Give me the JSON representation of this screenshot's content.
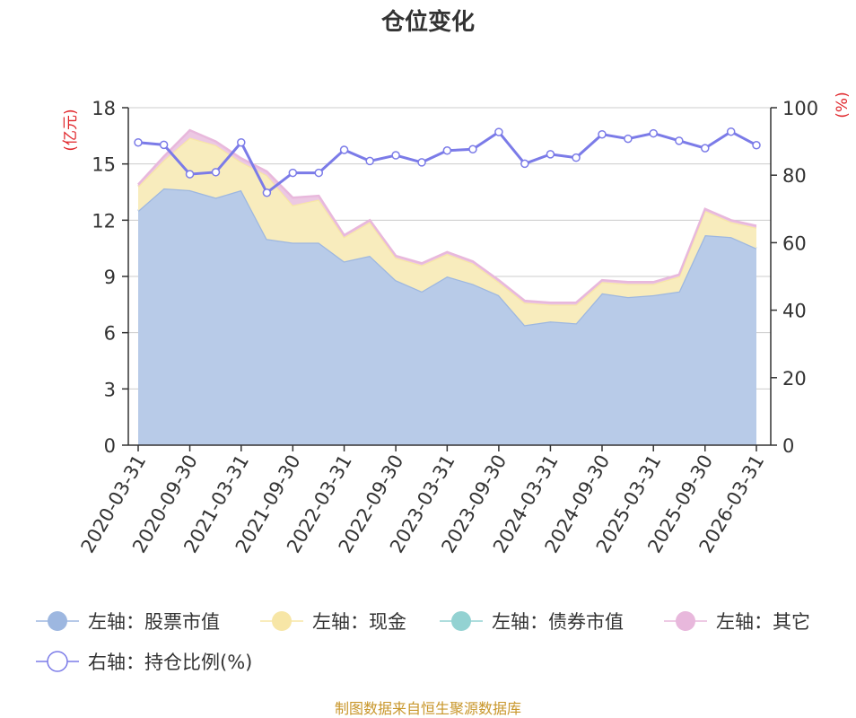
{
  "colors": {
    "stock": "#9db7e0",
    "cash": "#f7e6a6",
    "bond": "#93d2d2",
    "other": "#e8b8dc",
    "ratio": "#7b7be8",
    "stock_fill": "#b8cbe8",
    "cash_fill": "#f8ecbd",
    "other_fill": "#ecc8e3",
    "unit": "#e0262b",
    "source": "#c8962a"
  },
  "chart_data": {
    "type": "area",
    "title": "仓位变化",
    "left_unit": "(亿元)",
    "right_unit": "(%)",
    "source": "制图数据来自恒生聚源数据库",
    "left_ylim": [
      0,
      18
    ],
    "left_ticks": [
      "0",
      "3",
      "6",
      "9",
      "12",
      "15",
      "18"
    ],
    "right_ylim": [
      0,
      100
    ],
    "right_ticks": [
      "0",
      "20",
      "40",
      "60",
      "80",
      "100"
    ],
    "x_tick_labels": [
      "2020-03-31",
      "2020-09-30",
      "2021-03-31",
      "2021-09-30",
      "2022-03-31",
      "2022-09-30",
      "2023-03-31",
      "2023-09-30",
      "2024-03-31",
      "2024-09-30",
      "2025-03-31",
      "2025-09-30",
      "2026-03-31"
    ],
    "x": [
      "2020-03-31",
      "2020-06-30",
      "2020-09-30",
      "2020-12-31",
      "2021-03-31",
      "2021-06-30",
      "2021-09-30",
      "2021-12-31",
      "2022-03-31",
      "2022-06-30",
      "2022-09-30",
      "2022-12-31",
      "2023-03-31",
      "2023-06-30",
      "2023-09-30",
      "2023-12-31",
      "2024-03-31",
      "2024-06-30",
      "2024-09-30",
      "2024-12-31",
      "2025-03-31",
      "2025-06-30",
      "2025-09-30",
      "2025-12-31",
      "2026-03-31"
    ],
    "legend": [
      {
        "label": "左轴：股票市值",
        "key": "stock",
        "marker": "filled"
      },
      {
        "label": "左轴：现金",
        "key": "cash",
        "marker": "filled"
      },
      {
        "label": "左轴：债券市值",
        "key": "bond",
        "marker": "filled"
      },
      {
        "label": "左轴：其它",
        "key": "other",
        "marker": "filled"
      },
      {
        "label": "右轴：持仓比例(%)",
        "key": "ratio",
        "marker": "hollow"
      }
    ],
    "series": [
      {
        "name": "左轴：股票市值",
        "axis": "left",
        "stacked": true,
        "values": [
          12.5,
          13.7,
          13.6,
          13.2,
          13.6,
          11.0,
          10.8,
          10.8,
          9.8,
          10.1,
          8.8,
          8.2,
          9.0,
          8.6,
          8.0,
          6.4,
          6.6,
          6.5,
          8.1,
          7.9,
          8.0,
          8.2,
          11.2,
          11.1,
          10.5
        ]
      },
      {
        "name": "左轴：现金",
        "axis": "left",
        "stacked": true,
        "values": [
          1.3,
          1.5,
          2.8,
          2.8,
          1.5,
          3.4,
          2.0,
          2.3,
          1.3,
          1.8,
          1.2,
          1.4,
          1.2,
          1.1,
          0.7,
          1.2,
          0.9,
          1.0,
          0.6,
          0.7,
          0.6,
          0.8,
          1.3,
          0.8,
          1.1
        ]
      },
      {
        "name": "左轴：债券市值",
        "axis": "left",
        "stacked": true,
        "values": [
          0,
          0,
          0,
          0,
          0,
          0,
          0,
          0,
          0,
          0,
          0,
          0,
          0,
          0,
          0,
          0,
          0,
          0,
          0,
          0,
          0,
          0,
          0,
          0,
          0
        ]
      },
      {
        "name": "左轴：其它",
        "axis": "left",
        "stacked": true,
        "values": [
          0.1,
          0.2,
          0.4,
          0.2,
          0.2,
          0.2,
          0.4,
          0.2,
          0.1,
          0.1,
          0.1,
          0.1,
          0.1,
          0.1,
          0.1,
          0.1,
          0.1,
          0.1,
          0.1,
          0.1,
          0.1,
          0.1,
          0.1,
          0.1,
          0.1
        ]
      },
      {
        "name": "右轴：持仓比例(%)",
        "axis": "right",
        "values": [
          89.7,
          89.0,
          80.3,
          80.9,
          89.7,
          74.8,
          80.7,
          80.7,
          87.5,
          84.2,
          85.9,
          83.8,
          87.3,
          87.7,
          92.8,
          83.4,
          86.2,
          85.2,
          92.1,
          90.8,
          92.4,
          90.2,
          88.0,
          92.9,
          88.9
        ]
      }
    ],
    "grid": true,
    "legend_position": "bottom"
  }
}
